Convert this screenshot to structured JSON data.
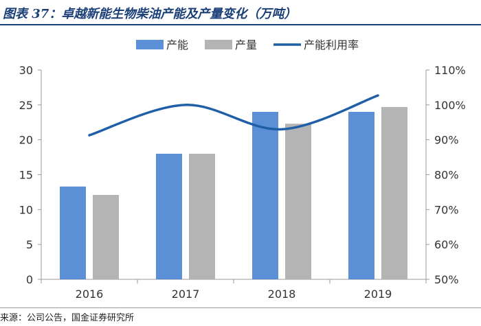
{
  "header": {
    "title": "图表 37：卓越新能生物柴油产能及产量变化（万吨）"
  },
  "source": {
    "text": "来源：公司公告，国金证券研究所"
  },
  "chart_data": {
    "type": "bar",
    "categories": [
      "2016",
      "2017",
      "2018",
      "2019"
    ],
    "series": [
      {
        "name": "产能",
        "kind": "bar",
        "axis": "left",
        "color": "#5b8fd6",
        "values": [
          13.3,
          18,
          24,
          24
        ]
      },
      {
        "name": "产量",
        "kind": "bar",
        "axis": "left",
        "color": "#b4b4b4",
        "values": [
          12.1,
          18,
          22.3,
          24.7
        ]
      },
      {
        "name": "产能利用率",
        "kind": "line",
        "axis": "right",
        "color": "#1f5fa8",
        "values": [
          91.3,
          100,
          93.0,
          102.7
        ]
      }
    ],
    "y_left": {
      "min": 0,
      "max": 30,
      "ticks": [
        "0",
        "5",
        "10",
        "15",
        "20",
        "25",
        "30"
      ]
    },
    "y_right": {
      "min": 50,
      "max": 110,
      "ticks": [
        "50%",
        "60%",
        "70%",
        "80%",
        "90%",
        "100%",
        "110%"
      ]
    },
    "legend_position": "top",
    "grid": false
  }
}
